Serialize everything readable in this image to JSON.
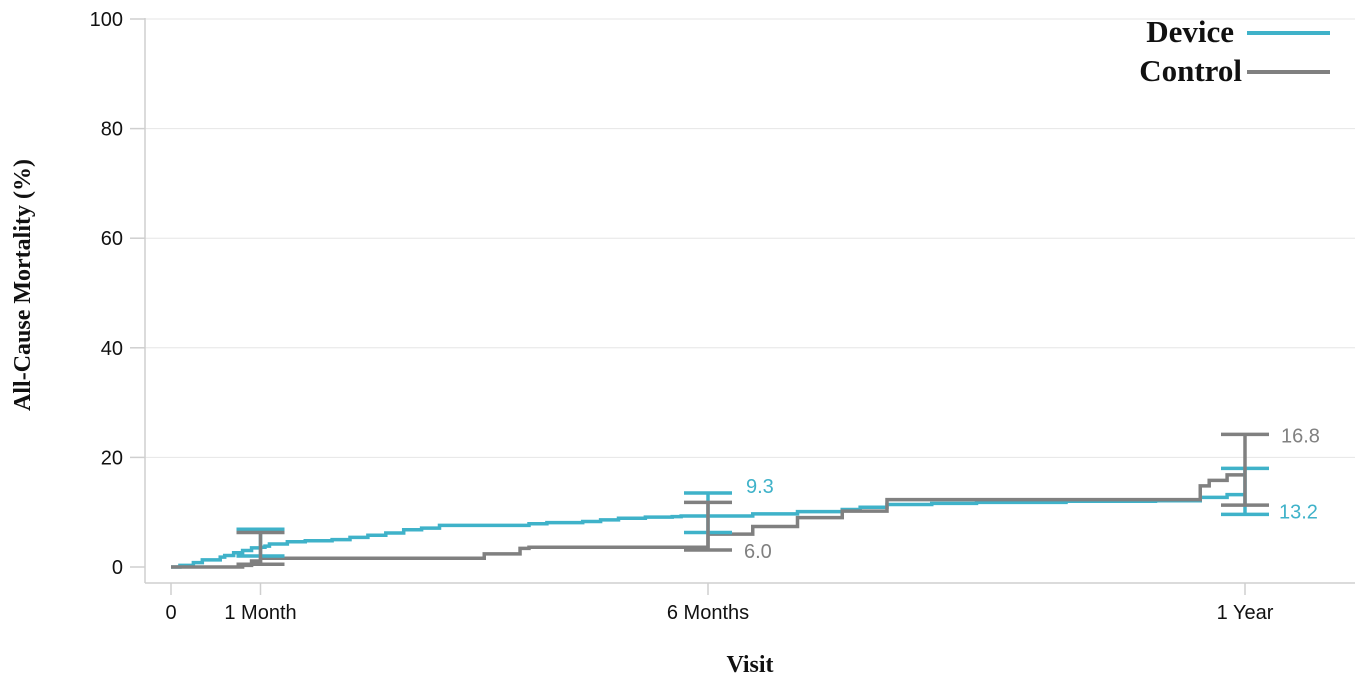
{
  "chart_data": {
    "type": "line",
    "step": true,
    "title": "",
    "xlabel": "Visit",
    "ylabel": "All-Cause Mortality (%)",
    "ylim": [
      0,
      100
    ],
    "yticks": [
      0,
      20,
      40,
      60,
      80,
      100
    ],
    "xlim_months": [
      -0.1,
      12.9
    ],
    "xticks": [
      {
        "value": 0,
        "label": "0"
      },
      {
        "value": 1,
        "label": "1 Month"
      },
      {
        "value": 6,
        "label": "6 Months"
      },
      {
        "value": 12,
        "label": "1 Year"
      }
    ],
    "grid": "horizontal",
    "legend": "top-right",
    "series": [
      {
        "name": "Device",
        "color": "#3fb2c9",
        "x": [
          0,
          0.1,
          0.25,
          0.35,
          0.55,
          0.6,
          0.7,
          0.8,
          0.9,
          1.0,
          1.05,
          1.1,
          1.3,
          1.5,
          1.8,
          2.0,
          2.2,
          2.4,
          2.6,
          2.8,
          3.0,
          3.5,
          4.0,
          4.2,
          4.6,
          4.8,
          5.0,
          5.3,
          5.6,
          5.7,
          6.0,
          6.5,
          7.0,
          7.5,
          7.7,
          8.0,
          8.5,
          9.0,
          10.0,
          11.0,
          11.5,
          11.8
        ],
        "y": [
          0,
          0.3,
          0.8,
          1.3,
          1.8,
          2.1,
          2.6,
          3.0,
          3.5,
          3.6,
          3.8,
          4.2,
          4.6,
          4.8,
          5.0,
          5.4,
          5.8,
          6.2,
          6.8,
          7.1,
          7.6,
          7.6,
          7.9,
          8.1,
          8.3,
          8.6,
          8.9,
          9.1,
          9.2,
          9.3,
          9.3,
          9.7,
          10.1,
          10.5,
          10.9,
          11.4,
          11.6,
          11.8,
          12.0,
          12.1,
          12.7,
          13.2
        ],
        "ci": [
          {
            "x": 1.0,
            "low": 2.0,
            "high": 6.9
          },
          {
            "x": 6.0,
            "low": 6.3,
            "high": 13.5
          },
          {
            "x": 12.0,
            "low": 9.6,
            "high": 18.0
          }
        ],
        "labels": [
          {
            "x": 6.0,
            "text": "9.3"
          },
          {
            "x": 12.0,
            "text": "13.2"
          }
        ]
      },
      {
        "name": "Control",
        "color": "#808080",
        "x": [
          0,
          0.8,
          0.9,
          1.0,
          3.0,
          3.5,
          3.9,
          4.0,
          6.0,
          6.5,
          7.0,
          7.5,
          8.0,
          8.2,
          9.0,
          11.5,
          11.6,
          11.8
        ],
        "y": [
          0,
          0.3,
          1.1,
          1.6,
          1.6,
          2.4,
          3.4,
          3.6,
          6.0,
          7.4,
          9.0,
          10.2,
          12.3,
          12.3,
          12.3,
          14.8,
          15.8,
          16.8
        ],
        "ci": [
          {
            "x": 1.0,
            "low": 0.5,
            "high": 6.3
          },
          {
            "x": 6.0,
            "low": 3.1,
            "high": 11.8
          },
          {
            "x": 12.0,
            "low": 11.3,
            "high": 24.2
          }
        ],
        "labels": [
          {
            "x": 6.0,
            "text": "6.0"
          },
          {
            "x": 12.0,
            "text": "16.8"
          }
        ]
      }
    ]
  }
}
